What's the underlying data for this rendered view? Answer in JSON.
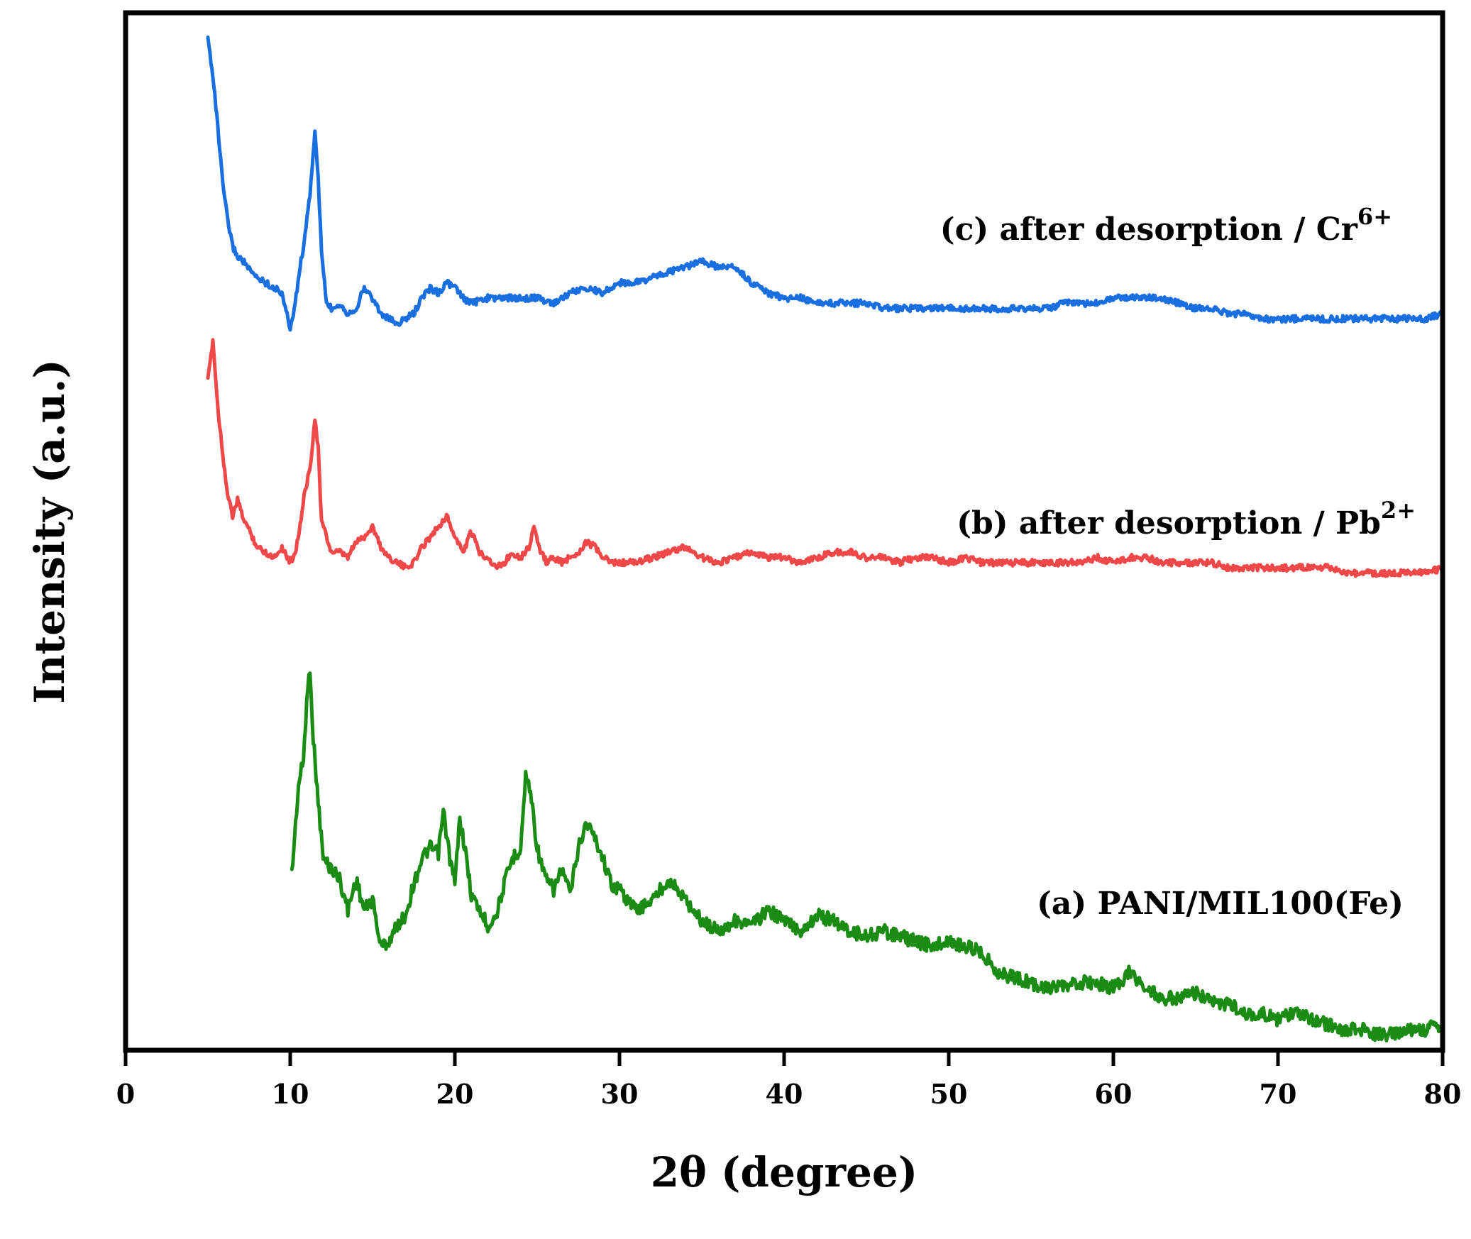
{
  "chart_data": {
    "type": "line",
    "title": "",
    "xlabel": "2θ (degree)",
    "ylabel": "Intensity (a.u.)",
    "xlim": [
      0,
      80
    ],
    "ylim": [
      0,
      100
    ],
    "xticks": [
      0,
      10,
      20,
      30,
      40,
      50,
      60,
      70,
      80
    ],
    "y_ticklabels_shown": false,
    "grid": false,
    "legend": "none (inline labels)",
    "series": [
      {
        "name": "(a) PANI/MIL100(Fe)",
        "label_parts": {
          "main": "(a) PANI/MIL100(Fe)",
          "sup": ""
        },
        "color": "#1a8c14",
        "x": [
          10.1,
          10.5,
          10.8,
          11.0,
          11.2,
          11.4,
          11.7,
          12.0,
          12.5,
          13.0,
          13.5,
          14.0,
          14.5,
          15.0,
          15.5,
          16.0,
          16.5,
          17.0,
          17.5,
          18.0,
          18.5,
          19.0,
          19.3,
          19.7,
          20.0,
          20.3,
          20.7,
          21.0,
          21.5,
          22.0,
          22.5,
          23.0,
          23.5,
          24.0,
          24.3,
          24.6,
          25.0,
          25.5,
          26.0,
          26.5,
          27.0,
          27.5,
          28.0,
          28.5,
          29.0,
          29.5,
          30.0,
          31.0,
          32.0,
          33.0,
          34.0,
          35.0,
          36.0,
          37.0,
          38.0,
          39.0,
          40.0,
          41.0,
          42.0,
          43.0,
          44.0,
          45.0,
          46.0,
          47.0,
          48.0,
          49.0,
          50.0,
          51.0,
          52.0,
          53.0,
          54.0,
          55.0,
          56.0,
          57.0,
          58.0,
          59.0,
          60.0,
          61.0,
          62.0,
          63.0,
          64.0,
          65.0,
          66.0,
          67.0,
          68.0,
          69.0,
          70.0,
          71.0,
          72.0,
          73.0,
          74.0,
          75.0,
          76.0,
          77.0,
          78.0,
          79.0,
          80.0
        ],
        "y": [
          17.0,
          25.5,
          28.0,
          33.5,
          37.0,
          30.0,
          24.0,
          18.5,
          17.5,
          16.5,
          13.5,
          16.5,
          13.5,
          14.5,
          10.0,
          10.5,
          12.0,
          13.0,
          16.0,
          18.5,
          19.5,
          19.0,
          23.0,
          18.5,
          16.0,
          22.5,
          18.5,
          15.0,
          13.5,
          12.0,
          13.0,
          16.0,
          18.5,
          19.5,
          26.5,
          25.0,
          19.5,
          16.5,
          15.5,
          17.5,
          15.0,
          19.5,
          22.0,
          20.5,
          18.5,
          16.0,
          15.5,
          13.5,
          14.5,
          16.5,
          14.5,
          12.5,
          11.5,
          12.5,
          12.0,
          13.5,
          12.5,
          11.5,
          13.0,
          12.5,
          11.5,
          11.0,
          11.5,
          11.0,
          10.5,
          10.0,
          10.5,
          10.0,
          9.5,
          7.5,
          7.0,
          6.5,
          6.0,
          6.0,
          6.5,
          6.5,
          6.0,
          7.5,
          6.0,
          5.0,
          5.0,
          5.5,
          4.5,
          4.5,
          3.5,
          3.5,
          3.0,
          3.5,
          3.0,
          2.5,
          2.0,
          2.0,
          1.5,
          1.5,
          2.0,
          2.0,
          2.5
        ]
      },
      {
        "name": "(b) after desorption / Pb2+",
        "label_parts": {
          "main": "(b) after desorption / Pb",
          "sup": "2+"
        },
        "color": "#f04848",
        "x": [
          5.0,
          5.3,
          5.6,
          5.9,
          6.2,
          6.5,
          6.8,
          7.1,
          7.4,
          7.7,
          8.0,
          8.5,
          9.0,
          9.5,
          10.0,
          10.3,
          10.6,
          10.9,
          11.2,
          11.5,
          11.7,
          11.9,
          12.2,
          12.5,
          13.0,
          13.5,
          14.0,
          14.5,
          15.0,
          15.5,
          16.0,
          16.5,
          17.0,
          17.5,
          18.0,
          18.5,
          19.0,
          19.5,
          20.0,
          20.5,
          21.0,
          21.5,
          22.0,
          22.5,
          23.0,
          23.5,
          24.0,
          24.5,
          24.8,
          25.2,
          25.6,
          26.0,
          26.5,
          27.0,
          27.5,
          28.0,
          28.5,
          29.0,
          29.5,
          30.0,
          31.0,
          32.0,
          33.0,
          34.0,
          35.0,
          36.0,
          37.0,
          38.0,
          39.0,
          40.0,
          41.0,
          42.0,
          43.0,
          44.0,
          45.0,
          46.0,
          47.0,
          48.0,
          49.0,
          50.0,
          51.0,
          52.0,
          53.0,
          54.0,
          55.0,
          56.0,
          57.0,
          58.0,
          59.0,
          60.0,
          61.0,
          62.0,
          63.0,
          64.0,
          65.0,
          66.0,
          67.0,
          68.0,
          69.0,
          70.0,
          71.0,
          72.0,
          73.0,
          74.0,
          75.0,
          76.0,
          77.0,
          78.0,
          79.0,
          80.0
        ],
        "y": [
          64.5,
          68.5,
          62.0,
          57.5,
          53.5,
          51.5,
          53.0,
          51.5,
          50.5,
          49.5,
          48.5,
          48.0,
          47.5,
          48.5,
          47.0,
          48.0,
          50.5,
          54.0,
          56.0,
          61.0,
          58.0,
          51.0,
          49.5,
          48.0,
          48.0,
          47.5,
          49.0,
          49.5,
          50.5,
          48.5,
          47.5,
          47.0,
          46.5,
          47.0,
          48.5,
          49.5,
          50.5,
          51.5,
          49.5,
          48.0,
          50.0,
          48.0,
          47.5,
          46.5,
          47.0,
          48.0,
          47.5,
          48.5,
          50.5,
          48.0,
          47.0,
          47.5,
          47.0,
          47.5,
          48.0,
          49.0,
          48.5,
          47.5,
          47.0,
          47.0,
          47.0,
          47.5,
          48.0,
          48.5,
          47.5,
          47.0,
          47.5,
          48.0,
          47.5,
          47.5,
          47.0,
          47.5,
          48.0,
          48.0,
          47.5,
          47.5,
          47.0,
          47.5,
          47.5,
          47.0,
          47.5,
          47.0,
          47.0,
          47.0,
          47.0,
          47.0,
          47.0,
          47.0,
          47.5,
          47.0,
          47.5,
          47.5,
          47.0,
          47.0,
          47.0,
          47.0,
          46.5,
          46.5,
          46.5,
          46.5,
          46.5,
          46.5,
          46.5,
          46.0,
          46.0,
          46.0,
          46.0,
          46.0,
          46.0,
          46.5
        ]
      },
      {
        "name": "(c) after desorption / Cr6+",
        "label_parts": {
          "main": "(c) after desorption / Cr",
          "sup": "6+"
        },
        "color": "#1a6fe0",
        "x": [
          5.0,
          5.3,
          5.6,
          5.9,
          6.2,
          6.5,
          6.8,
          7.2,
          7.6,
          8.0,
          8.5,
          9.0,
          9.5,
          10.0,
          10.3,
          10.6,
          10.9,
          11.2,
          11.5,
          11.7,
          11.9,
          12.2,
          12.5,
          13.0,
          13.5,
          14.0,
          14.5,
          15.0,
          15.5,
          16.0,
          16.5,
          17.0,
          17.5,
          18.0,
          18.5,
          19.0,
          19.5,
          20.0,
          20.5,
          21.0,
          22.0,
          23.0,
          24.0,
          25.0,
          26.0,
          27.0,
          28.0,
          29.0,
          30.0,
          31.0,
          32.0,
          33.0,
          34.0,
          35.0,
          36.0,
          37.0,
          38.0,
          39.0,
          40.0,
          41.0,
          42.0,
          43.0,
          44.0,
          45.0,
          46.0,
          47.0,
          48.0,
          49.0,
          50.0,
          51.0,
          52.0,
          53.0,
          54.0,
          55.0,
          56.0,
          57.0,
          58.0,
          59.0,
          60.0,
          61.0,
          62.0,
          63.0,
          64.0,
          65.0,
          66.0,
          67.0,
          68.0,
          69.0,
          70.0,
          71.0,
          72.0,
          73.0,
          74.0,
          75.0,
          76.0,
          77.0,
          78.0,
          79.0,
          80.0
        ],
        "y": [
          97.5,
          94.0,
          89.0,
          83.5,
          80.0,
          77.5,
          76.5,
          76.0,
          75.0,
          74.5,
          74.0,
          73.5,
          73.0,
          69.5,
          72.0,
          75.5,
          78.5,
          82.5,
          88.5,
          84.0,
          77.0,
          72.0,
          71.5,
          72.0,
          71.0,
          71.5,
          73.5,
          72.5,
          71.0,
          70.5,
          70.0,
          70.5,
          71.0,
          72.5,
          73.5,
          73.0,
          74.0,
          73.5,
          72.5,
          72.0,
          72.5,
          72.5,
          72.5,
          72.5,
          72.0,
          73.0,
          73.5,
          73.0,
          74.0,
          74.0,
          74.5,
          75.0,
          75.5,
          76.0,
          75.5,
          75.5,
          74.0,
          73.0,
          72.5,
          72.5,
          72.0,
          72.0,
          72.0,
          72.0,
          71.5,
          71.5,
          71.5,
          71.5,
          71.5,
          71.5,
          71.5,
          71.5,
          71.5,
          71.5,
          71.5,
          72.0,
          72.0,
          72.0,
          72.5,
          72.5,
          72.5,
          72.5,
          72.0,
          71.5,
          71.5,
          71.0,
          71.0,
          70.5,
          70.5,
          70.5,
          70.5,
          70.5,
          70.5,
          70.5,
          70.5,
          70.5,
          70.5,
          70.5,
          71.0
        ]
      }
    ]
  }
}
